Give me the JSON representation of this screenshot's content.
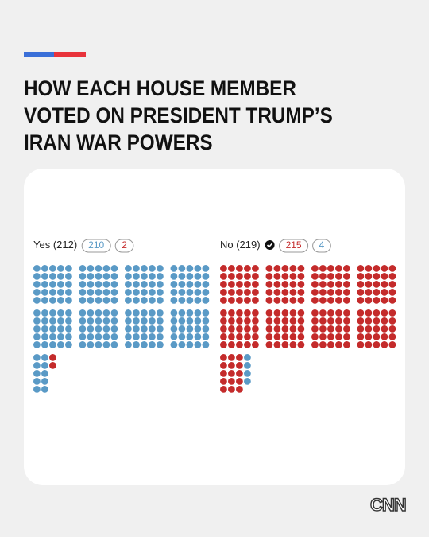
{
  "header": {
    "title_lines": [
      "HOW EACH HOUSE MEMBER",
      "VOTED ON PRESIDENT TRUMP’S",
      "IRAN WAR POWERS"
    ]
  },
  "chart_data": {
    "type": "waffle",
    "per_block": 25,
    "blocks_per_row": 4,
    "groups": [
      {
        "label": "Yes (212)",
        "checked": false,
        "series": [
          {
            "color": "#5a9ac6",
            "value": 210
          },
          {
            "color": "#c42b2b",
            "value": 2
          }
        ]
      },
      {
        "label": "No (219)",
        "checked": true,
        "series": [
          {
            "color": "#c42b2b",
            "value": 215
          },
          {
            "color": "#5a9ac6",
            "value": 4
          }
        ]
      }
    ]
  },
  "brand": "CNN"
}
